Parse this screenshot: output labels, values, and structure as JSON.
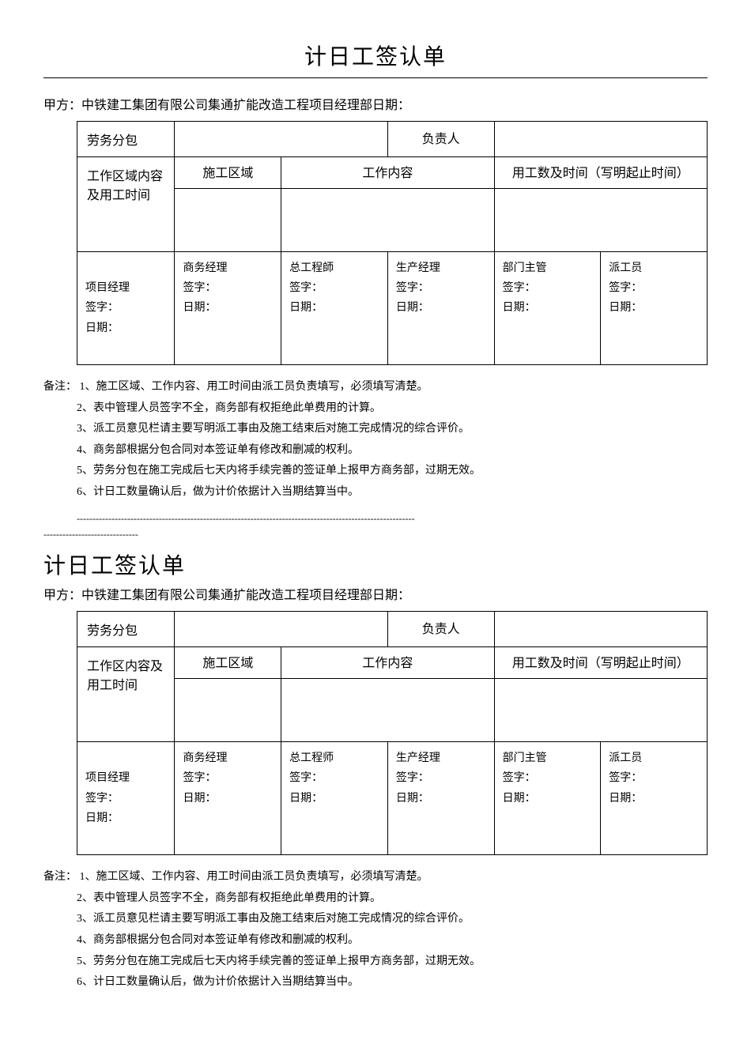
{
  "form": {
    "title": "计日工签认单",
    "party_line": "甲方：中铁建工集团有限公司集通扩能改造工程项目经理部日期：",
    "row1": {
      "label1": "劳务分包",
      "label2": "负责人"
    },
    "row2": {
      "left_label": "工作区域内容及用工时间",
      "left_label2": "工作区内容及用工时间",
      "col1": "施工区域",
      "col2": "工作内容",
      "col3": "用工数及时间（写明起止时间）"
    },
    "sigs": {
      "left": {
        "role": "项目经理",
        "sign": "签字：",
        "date": "日期："
      },
      "cols": [
        {
          "role": "商务经理",
          "sign": "签字：",
          "date": "日期："
        },
        {
          "role": "总工程師",
          "sign": "签字：",
          "date": "日期："
        },
        {
          "role": "总工程师",
          "sign": "签字：",
          "date": "日期："
        },
        {
          "role": "生产经理",
          "sign": "签字：",
          "date": "日期："
        },
        {
          "role": "部门主管",
          "sign": "签字：",
          "date": "日期："
        },
        {
          "role": "派工员",
          "sign": "签字：",
          "date": "日期："
        }
      ]
    },
    "notes": {
      "label": "备注：",
      "items": [
        "1、施工区域、工作内容、用工时间由派工员负责填写，必须填写清楚。",
        "2、表中管理人员签字不全，商务部有权拒绝此单费用的计算。",
        "3、派工员意见栏请主要写明派工事由及施工结束后对施工完成情况的综合评价。",
        "4、商务部根据分包合同对本签证单有修改和删减的权利。",
        "5、劳务分包在施工完成后七天内将手续完善的签证单上报甲方商务部，过期无效。",
        "6、计日工数量确认后，做为计价依据计入当期结算当中。"
      ]
    },
    "sep1": "-----------------------------------------------------------------------------------------------------------",
    "sep2": "------------------------------"
  }
}
